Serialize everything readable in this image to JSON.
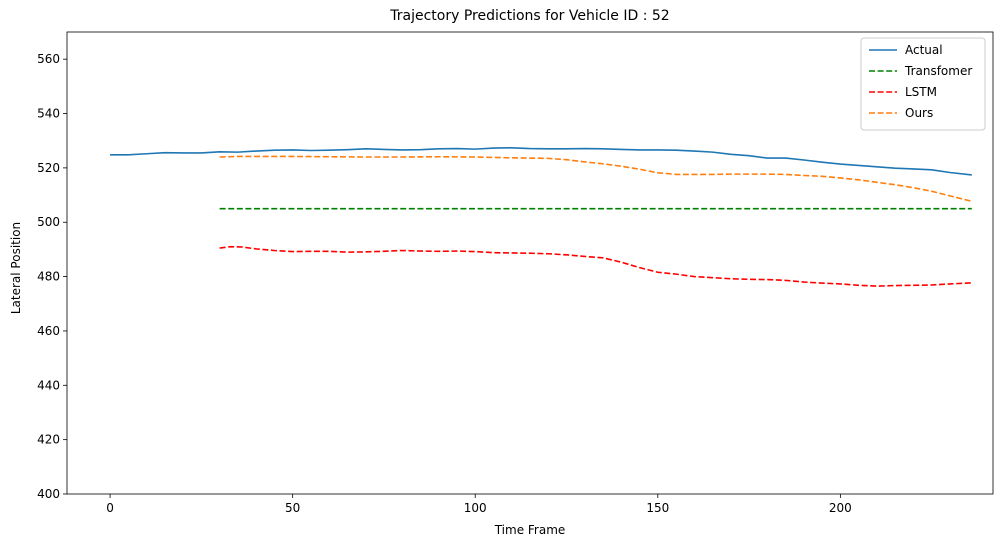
{
  "chart_data": {
    "type": "line",
    "title": "Trajectory Predictions for Vehicle ID : 52",
    "xlabel": "Time Frame",
    "ylabel": "Lateral Position",
    "xlim": [
      -11.8,
      241.8
    ],
    "ylim": [
      400,
      570
    ],
    "xticks": [
      0,
      50,
      100,
      150,
      200
    ],
    "yticks": [
      400,
      420,
      440,
      460,
      480,
      500,
      520,
      540,
      560
    ],
    "grid": false,
    "legend_position": "top-right",
    "series": [
      {
        "name": "Actual",
        "color": "#1f77b4",
        "style": "solid",
        "points": [
          [
            0,
            524.8
          ],
          [
            5,
            524.8
          ],
          [
            10,
            525.2
          ],
          [
            15,
            525.6
          ],
          [
            20,
            525.5
          ],
          [
            25,
            525.5
          ],
          [
            30,
            525.9
          ],
          [
            35,
            525.8
          ],
          [
            40,
            526.2
          ],
          [
            45,
            526.5
          ],
          [
            50,
            526.6
          ],
          [
            55,
            526.4
          ],
          [
            60,
            526.5
          ],
          [
            65,
            526.7
          ],
          [
            70,
            527.0
          ],
          [
            75,
            526.8
          ],
          [
            80,
            526.6
          ],
          [
            85,
            526.7
          ],
          [
            90,
            527.0
          ],
          [
            95,
            527.1
          ],
          [
            100,
            526.9
          ],
          [
            105,
            527.3
          ],
          [
            110,
            527.4
          ],
          [
            115,
            527.1
          ],
          [
            120,
            527.0
          ],
          [
            125,
            527.0
          ],
          [
            130,
            527.1
          ],
          [
            135,
            527.0
          ],
          [
            140,
            526.8
          ],
          [
            145,
            526.6
          ],
          [
            150,
            526.6
          ],
          [
            155,
            526.5
          ],
          [
            160,
            526.2
          ],
          [
            165,
            525.8
          ],
          [
            170,
            525.0
          ],
          [
            175,
            524.5
          ],
          [
            180,
            523.6
          ],
          [
            185,
            523.6
          ],
          [
            190,
            522.9
          ],
          [
            195,
            522.1
          ],
          [
            200,
            521.4
          ],
          [
            205,
            520.9
          ],
          [
            210,
            520.4
          ],
          [
            215,
            519.9
          ],
          [
            220,
            519.6
          ],
          [
            225,
            519.3
          ],
          [
            230,
            518.3
          ],
          [
            236,
            517.4
          ]
        ]
      },
      {
        "name": "Transfomer",
        "color": "#008000",
        "style": "dashed",
        "points": [
          [
            30,
            505
          ],
          [
            236,
            505
          ]
        ]
      },
      {
        "name": "LSTM",
        "color": "#ff0000",
        "style": "dashed",
        "points": [
          [
            30,
            490.5
          ],
          [
            33,
            491.0
          ],
          [
            36,
            490.9
          ],
          [
            40,
            490.2
          ],
          [
            45,
            489.6
          ],
          [
            50,
            489.2
          ],
          [
            55,
            489.3
          ],
          [
            60,
            489.3
          ],
          [
            65,
            489.0
          ],
          [
            70,
            489.1
          ],
          [
            75,
            489.3
          ],
          [
            80,
            489.6
          ],
          [
            85,
            489.4
          ],
          [
            90,
            489.3
          ],
          [
            95,
            489.4
          ],
          [
            100,
            489.2
          ],
          [
            105,
            488.8
          ],
          [
            110,
            488.7
          ],
          [
            115,
            488.6
          ],
          [
            120,
            488.4
          ],
          [
            125,
            488.0
          ],
          [
            130,
            487.4
          ],
          [
            135,
            486.9
          ],
          [
            140,
            485.3
          ],
          [
            145,
            483.3
          ],
          [
            150,
            481.6
          ],
          [
            155,
            480.9
          ],
          [
            160,
            480.0
          ],
          [
            165,
            479.6
          ],
          [
            170,
            479.2
          ],
          [
            175,
            479.0
          ],
          [
            180,
            478.9
          ],
          [
            185,
            478.6
          ],
          [
            190,
            478.0
          ],
          [
            195,
            477.6
          ],
          [
            200,
            477.3
          ],
          [
            205,
            476.8
          ],
          [
            210,
            476.5
          ],
          [
            215,
            476.7
          ],
          [
            220,
            476.8
          ],
          [
            225,
            476.9
          ],
          [
            230,
            477.3
          ],
          [
            236,
            477.7
          ]
        ]
      },
      {
        "name": "Ours",
        "color": "#ff7f0e",
        "style": "dashed",
        "points": [
          [
            30,
            524.0
          ],
          [
            35,
            524.2
          ],
          [
            40,
            524.2
          ],
          [
            50,
            524.2
          ],
          [
            60,
            524.1
          ],
          [
            70,
            524.0
          ],
          [
            80,
            524.0
          ],
          [
            90,
            524.1
          ],
          [
            100,
            524.0
          ],
          [
            110,
            523.7
          ],
          [
            120,
            523.5
          ],
          [
            125,
            523.0
          ],
          [
            130,
            522.2
          ],
          [
            135,
            521.5
          ],
          [
            140,
            520.6
          ],
          [
            145,
            519.5
          ],
          [
            150,
            518.2
          ],
          [
            155,
            517.6
          ],
          [
            160,
            517.6
          ],
          [
            165,
            517.6
          ],
          [
            170,
            517.7
          ],
          [
            175,
            517.7
          ],
          [
            180,
            517.7
          ],
          [
            185,
            517.6
          ],
          [
            190,
            517.2
          ],
          [
            195,
            516.9
          ],
          [
            200,
            516.3
          ],
          [
            205,
            515.6
          ],
          [
            210,
            514.7
          ],
          [
            215,
            513.8
          ],
          [
            220,
            512.7
          ],
          [
            225,
            511.4
          ],
          [
            230,
            509.7
          ],
          [
            236,
            507.7
          ]
        ]
      }
    ]
  }
}
